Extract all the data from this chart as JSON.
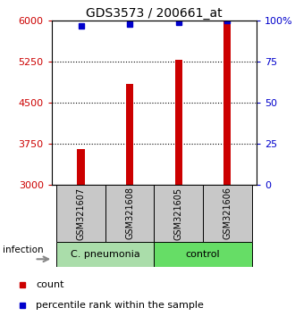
{
  "title": "GDS3573 / 200661_at",
  "samples": [
    "GSM321607",
    "GSM321608",
    "GSM321605",
    "GSM321606"
  ],
  "counts": [
    3660,
    4840,
    5290,
    6000
  ],
  "percentiles": [
    97,
    98,
    99,
    100
  ],
  "ylim_left": [
    3000,
    6000
  ],
  "yticks_left": [
    3000,
    3750,
    4500,
    5250,
    6000
  ],
  "ylim_right": [
    0,
    100
  ],
  "yticks_right": [
    0,
    25,
    50,
    75,
    100
  ],
  "bar_color": "#cc0000",
  "percentile_color": "#0000cc",
  "bar_width": 0.15,
  "groups": [
    {
      "label": "C. pneumonia",
      "samples": [
        0,
        1
      ],
      "color": "#aaddaa"
    },
    {
      "label": "control",
      "samples": [
        2,
        3
      ],
      "color": "#66dd66"
    }
  ],
  "infection_label": "infection",
  "legend_items": [
    {
      "color": "#cc0000",
      "label": "count"
    },
    {
      "color": "#0000cc",
      "label": "percentile rank within the sample"
    }
  ],
  "label_area_color": "#c8c8c8",
  "title_fontsize": 10,
  "tick_fontsize": 8,
  "legend_fontsize": 8,
  "sample_label_fontsize": 7
}
